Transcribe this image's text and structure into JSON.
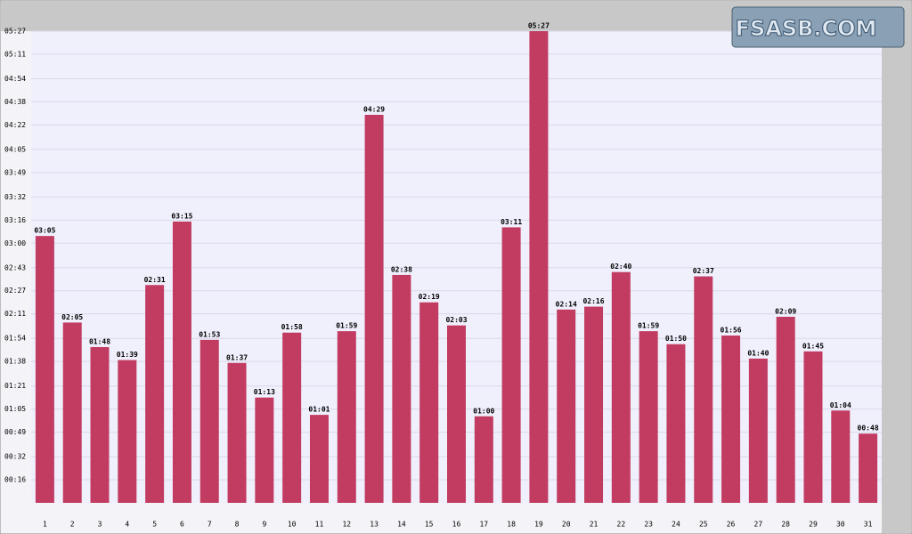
{
  "chart_data": {
    "type": "bar",
    "logo": "FSASB.COM",
    "categories": [
      "1",
      "2",
      "3",
      "4",
      "5",
      "6",
      "7",
      "8",
      "9",
      "10",
      "11",
      "12",
      "13",
      "14",
      "15",
      "16",
      "17",
      "18",
      "19",
      "20",
      "21",
      "22",
      "23",
      "24",
      "25",
      "26",
      "27",
      "28",
      "29",
      "30",
      "31"
    ],
    "values": [
      185,
      125,
      108,
      99,
      151,
      195,
      113,
      97,
      73,
      118,
      61,
      119,
      269,
      158,
      139,
      123,
      60,
      191,
      327,
      134,
      136,
      160,
      119,
      110,
      157,
      116,
      100,
      129,
      105,
      64,
      48
    ],
    "value_labels": [
      "03:05",
      "02:05",
      "01:48",
      "01:39",
      "02:31",
      "03:15",
      "01:53",
      "01:37",
      "01:13",
      "01:58",
      "01:01",
      "01:59",
      "04:29",
      "02:38",
      "02:19",
      "02:03",
      "01:00",
      "03:11",
      "05:27",
      "02:14",
      "02:16",
      "02:40",
      "01:59",
      "01:50",
      "02:37",
      "01:56",
      "01:40",
      "02:09",
      "01:45",
      "01:04",
      "00:48"
    ],
    "color": "#c23c61",
    "ylim": [
      0,
      327
    ],
    "yticks": [
      {
        "value": 16,
        "label": "00:16"
      },
      {
        "value": 32,
        "label": "00:32"
      },
      {
        "value": 49,
        "label": "00:49"
      },
      {
        "value": 65,
        "label": "01:05"
      },
      {
        "value": 81,
        "label": "01:21"
      },
      {
        "value": 98,
        "label": "01:38"
      },
      {
        "value": 114,
        "label": "01:54"
      },
      {
        "value": 131,
        "label": "02:11"
      },
      {
        "value": 147,
        "label": "02:27"
      },
      {
        "value": 163,
        "label": "02:43"
      },
      {
        "value": 180,
        "label": "03:00"
      },
      {
        "value": 196,
        "label": "03:16"
      },
      {
        "value": 212,
        "label": "03:32"
      },
      {
        "value": 229,
        "label": "03:49"
      },
      {
        "value": 245,
        "label": "04:05"
      },
      {
        "value": 262,
        "label": "04:22"
      },
      {
        "value": 278,
        "label": "04:38"
      },
      {
        "value": 294,
        "label": "04:54"
      },
      {
        "value": 311,
        "label": "05:11"
      },
      {
        "value": 327,
        "label": "05:27"
      }
    ],
    "grid": true
  }
}
